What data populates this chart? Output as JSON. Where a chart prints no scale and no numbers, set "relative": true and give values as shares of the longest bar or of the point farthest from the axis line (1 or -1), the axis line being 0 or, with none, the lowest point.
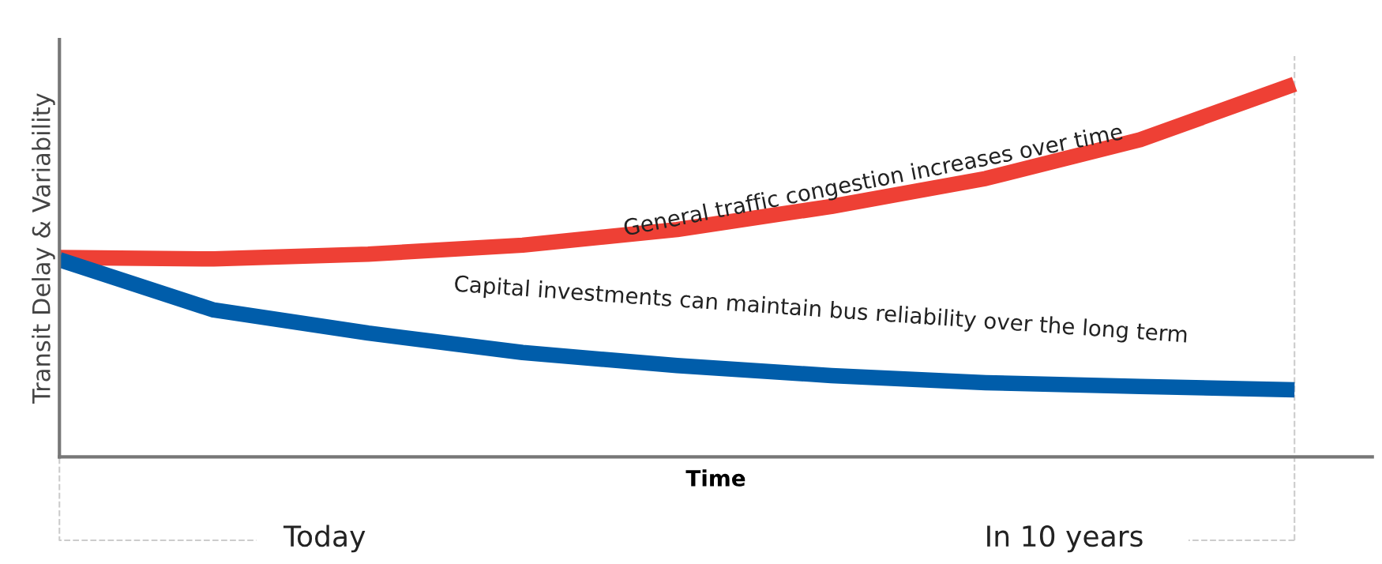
{
  "chart_data": {
    "type": "line",
    "relative": true,
    "xlabel": "Time",
    "ylabel": "Transit Delay & Variability",
    "categories": [
      null,
      null,
      null,
      null,
      null,
      null,
      null,
      null,
      null
    ],
    "series": [
      {
        "color": "#ee4035",
        "values": [
          0.535,
          0.531,
          0.544,
          0.568,
          0.61,
          0.672,
          0.747,
          0.851,
          1.0
        ]
      },
      {
        "color": "#005daa",
        "values": [
          0.529,
          0.394,
          0.332,
          0.28,
          0.245,
          0.218,
          0.199,
          0.189,
          0.18
        ]
      }
    ],
    "annotations": [
      "General traffic congestion increases over time",
      "Capital investments can maintain bus reliability over the long term",
      "Today",
      "In 10 years"
    ],
    "grid": false,
    "legend": false
  }
}
